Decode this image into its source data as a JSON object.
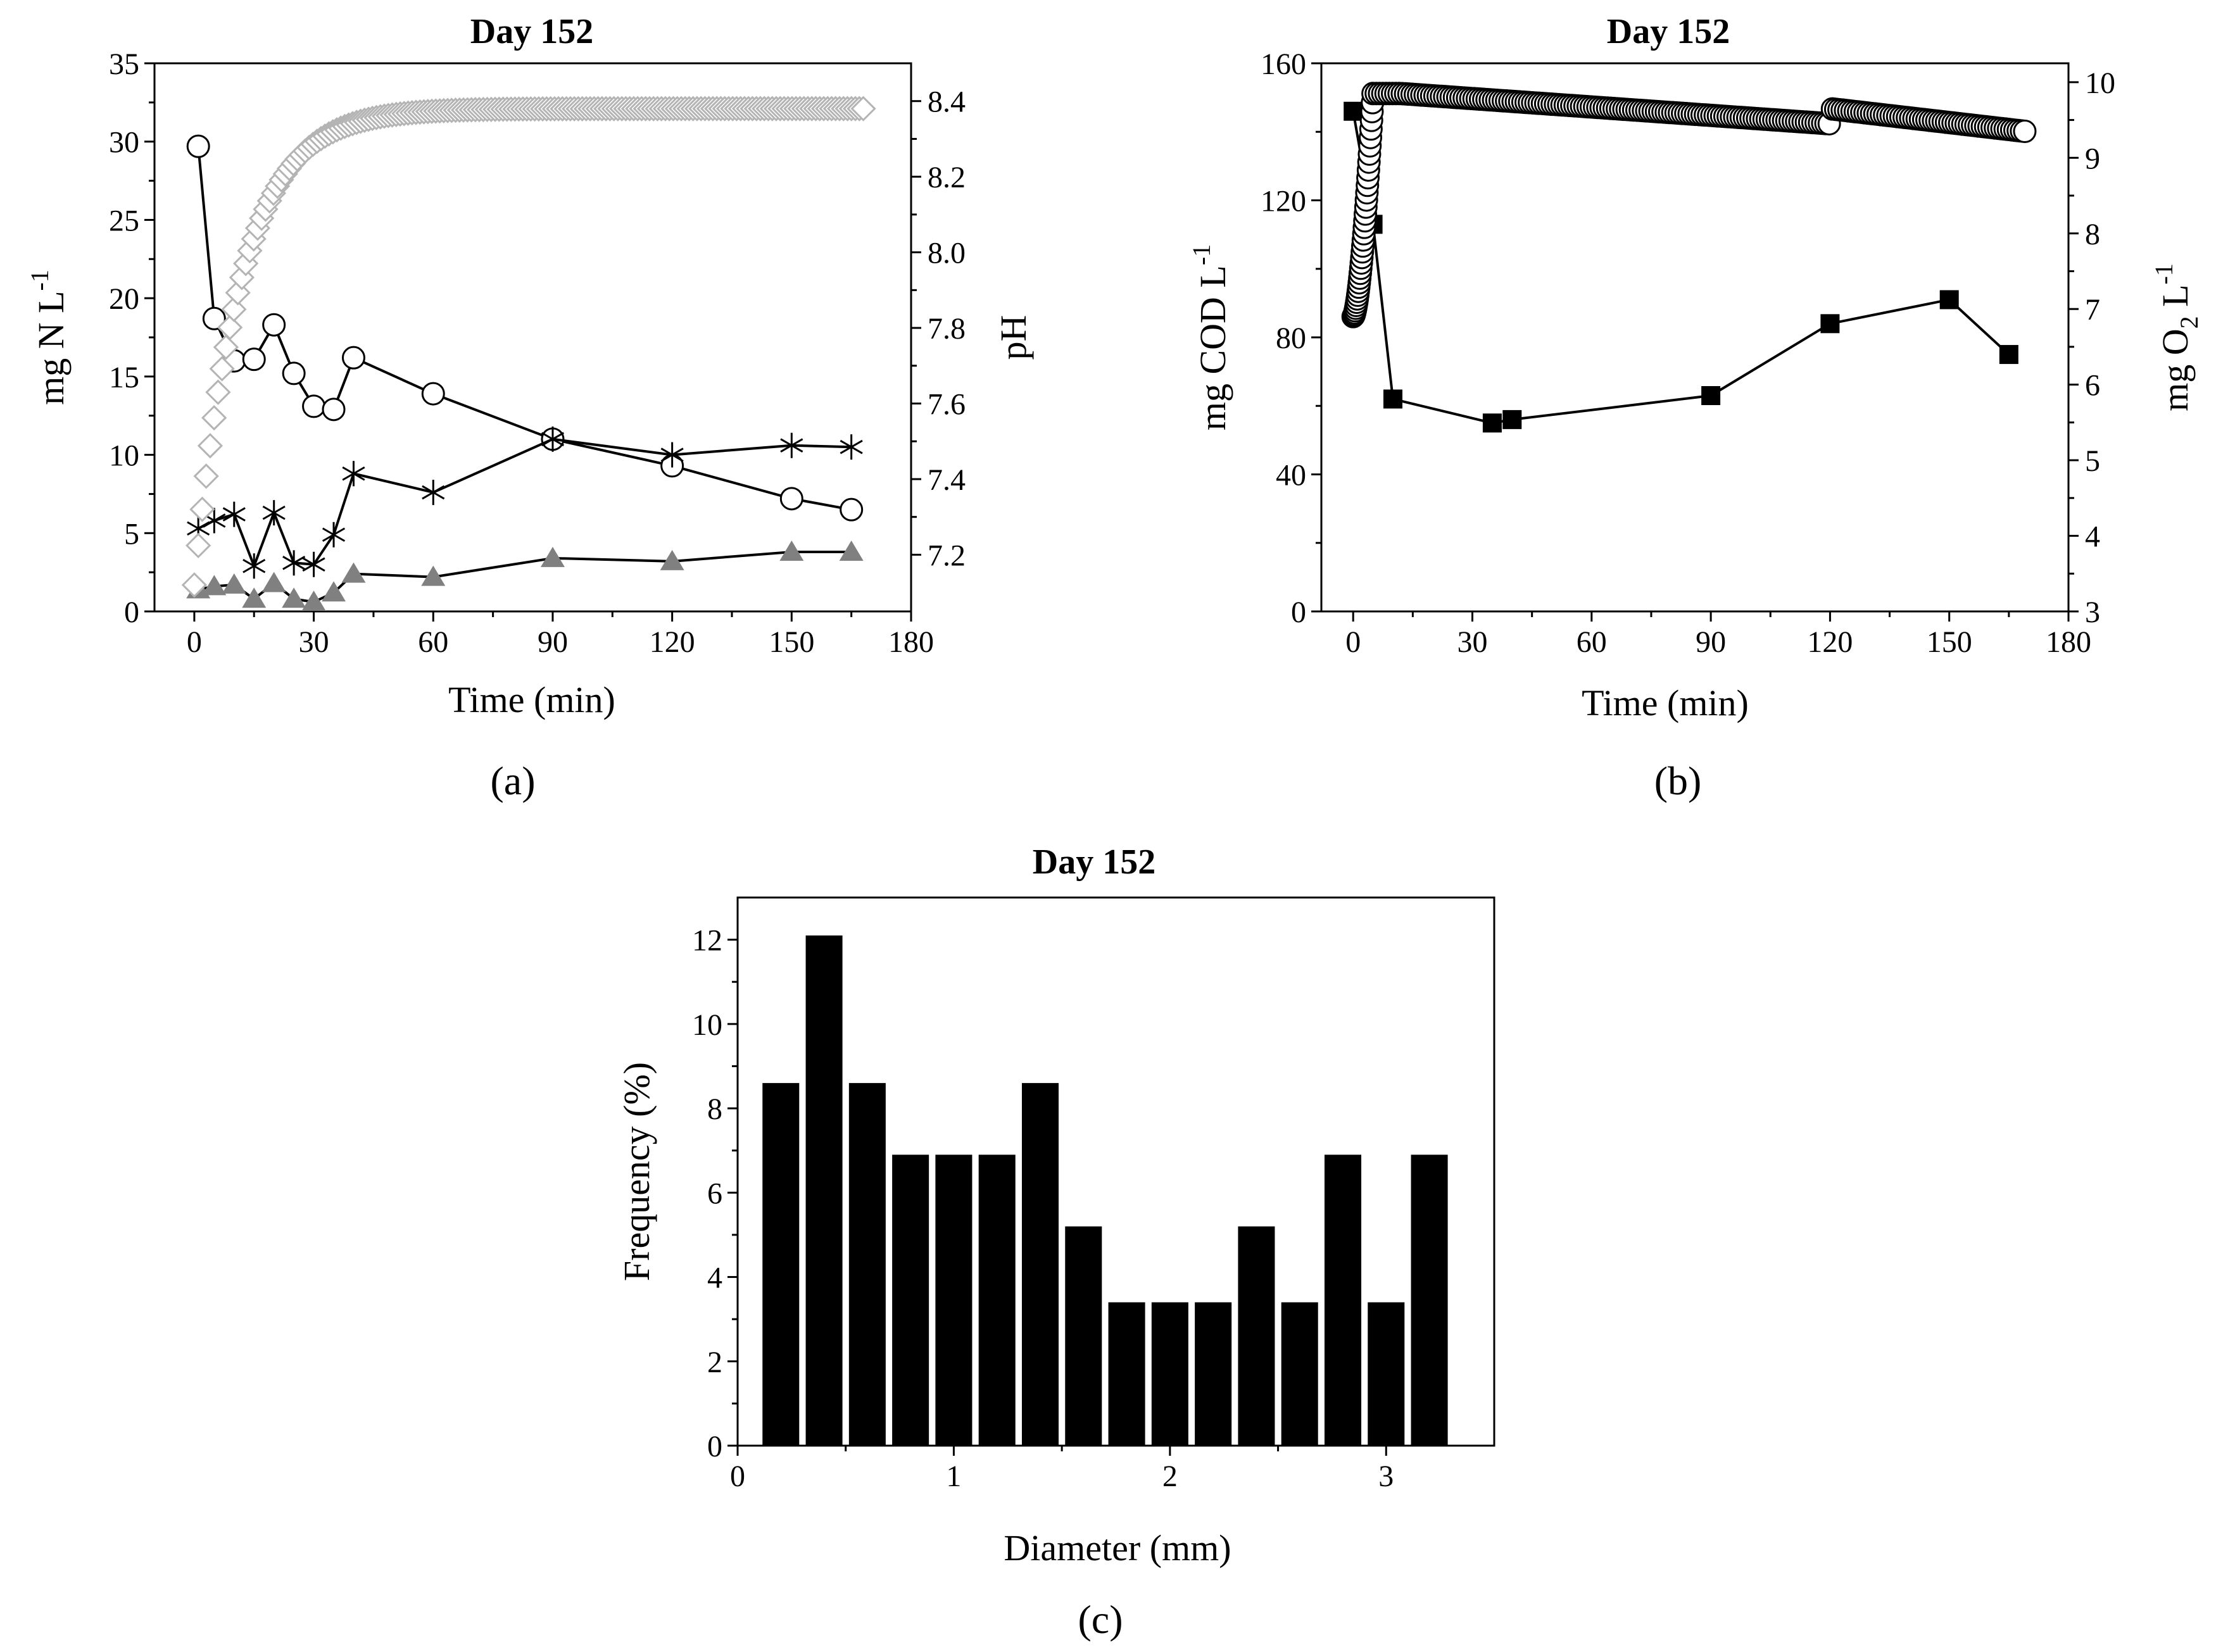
{
  "panels": {
    "a": {
      "title": "Day 152",
      "label": "(a)",
      "xlabel": "Time (min)",
      "ylabel": "mg N L",
      "ylabel_sup": "-1",
      "y2label": "pH"
    },
    "b": {
      "title": "Day 152",
      "label": "(b)",
      "xlabel": "Time (min)",
      "ylabel": "mg COD L",
      "ylabel_sup": "-1",
      "y2label_main": "mg O",
      "y2label_sub": "2",
      "y2label_unit": " L",
      "y2label_sup": "-1"
    },
    "c": {
      "title": "Day 152",
      "label": "(c)",
      "xlabel": "Diameter (mm)",
      "ylabel": "Frequency (%)"
    }
  },
  "chart_data": [
    {
      "id": "a",
      "type": "line",
      "xlim": [
        -10,
        180
      ],
      "ylim": [
        0,
        35
      ],
      "y2lim": [
        7.05,
        8.5
      ],
      "xticks": [
        0,
        30,
        60,
        90,
        120,
        150,
        180
      ],
      "yticks": [
        0,
        5,
        10,
        15,
        20,
        25,
        30,
        35
      ],
      "y2ticks": [
        7.2,
        7.4,
        7.6,
        7.8,
        8.0,
        8.2,
        8.4
      ],
      "series": [
        {
          "marker": "circle-open",
          "color": "#000000",
          "axis": "left",
          "x": [
            1,
            5,
            10,
            15,
            20,
            25,
            30,
            35,
            40,
            60,
            90,
            120,
            150,
            165
          ],
          "y": [
            29.7,
            18.7,
            16.0,
            16.1,
            18.3,
            15.2,
            13.1,
            12.9,
            16.2,
            13.9,
            11.0,
            9.3,
            7.2,
            6.5
          ]
        },
        {
          "marker": "asterisk",
          "color": "#000000",
          "axis": "left",
          "x": [
            1,
            5,
            10,
            15,
            20,
            25,
            30,
            35,
            40,
            60,
            90,
            120,
            150,
            165
          ],
          "y": [
            5.3,
            5.8,
            6.2,
            2.9,
            6.3,
            3.1,
            3.0,
            4.9,
            8.8,
            7.6,
            11.0,
            10.0,
            10.6,
            10.5
          ]
        },
        {
          "marker": "triangle",
          "color": "#808080",
          "axis": "left",
          "x": [
            1,
            5,
            10,
            15,
            20,
            25,
            30,
            35,
            40,
            60,
            90,
            120,
            150,
            165
          ],
          "y": [
            1.4,
            1.6,
            1.7,
            0.8,
            1.8,
            0.8,
            0.6,
            1.2,
            2.4,
            2.2,
            3.4,
            3.2,
            3.8,
            3.8
          ]
        },
        {
          "marker": "diamond-open",
          "color": "#b4b4b4",
          "axis": "right",
          "curve": "ph-rise",
          "x_start": 0,
          "x_end": 168,
          "y_start": 7.12,
          "y_end": 8.38
        }
      ]
    },
    {
      "id": "b",
      "type": "line",
      "xlim": [
        -8,
        180
      ],
      "ylim": [
        0,
        160
      ],
      "y2lim": [
        3,
        10.25
      ],
      "xticks": [
        0,
        30,
        60,
        90,
        120,
        150,
        180
      ],
      "yticks": [
        0,
        40,
        80,
        120,
        160
      ],
      "y2ticks": [
        3,
        4,
        5,
        6,
        7,
        8,
        9,
        10
      ],
      "series": [
        {
          "marker": "square",
          "color": "#000000",
          "axis": "left",
          "x": [
            0,
            5,
            10,
            35,
            40,
            90,
            120,
            150,
            165
          ],
          "y": [
            146,
            113,
            62,
            55,
            56,
            63,
            84,
            91,
            75
          ]
        },
        {
          "marker": "circle-open",
          "color": "#000000",
          "axis": "right",
          "curve": "do-profile",
          "x_start": 0,
          "x_end": 169,
          "y_start": 6.9,
          "y_peak": 9.85,
          "y_end": 9.35
        }
      ]
    },
    {
      "id": "c",
      "type": "bar",
      "xlim": [
        0,
        3.5
      ],
      "ylim": [
        0,
        13
      ],
      "xticks": [
        0,
        1,
        2,
        3
      ],
      "yticks": [
        0,
        2,
        4,
        6,
        8,
        10,
        12
      ],
      "x": [
        0.2,
        0.4,
        0.6,
        0.8,
        1.0,
        1.2,
        1.4,
        1.6,
        1.8,
        2.0,
        2.2,
        2.4,
        2.6,
        2.8,
        3.0,
        3.2
      ],
      "values": [
        8.6,
        12.1,
        8.6,
        6.9,
        6.9,
        6.9,
        8.6,
        5.2,
        3.4,
        3.4,
        3.4,
        5.2,
        3.4,
        6.9,
        3.4,
        6.9
      ],
      "color": "#000000"
    }
  ]
}
